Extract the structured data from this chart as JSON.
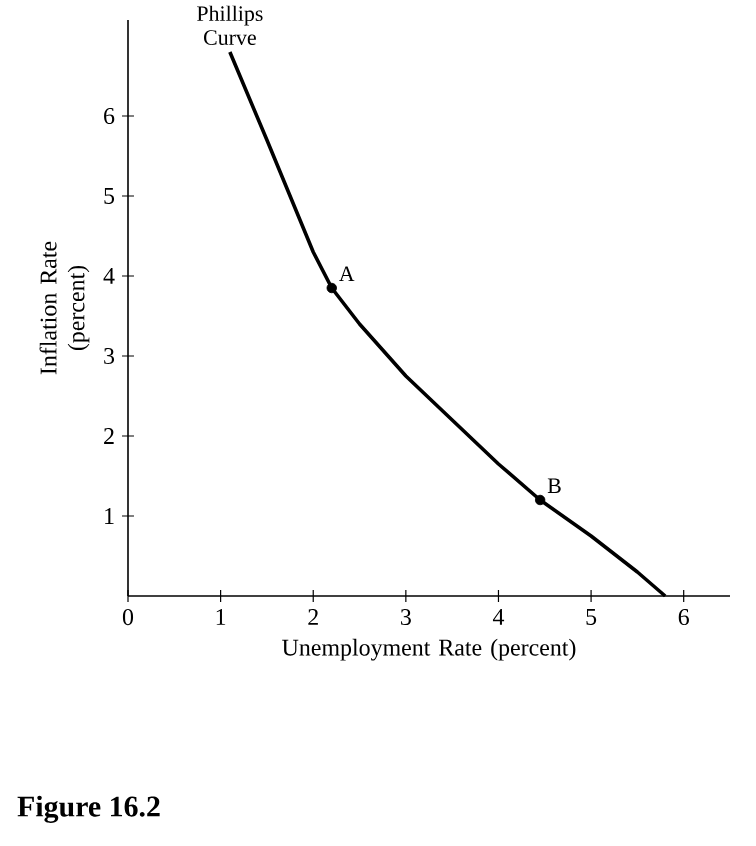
{
  "chart_data": {
    "type": "line",
    "xlabel": "Unemployment Rate (percent)",
    "ylabel": "Inflation Rate (percent)",
    "xlim": [
      0,
      6.5
    ],
    "ylim": [
      0,
      7.2
    ],
    "xticks": [
      0,
      1,
      2,
      3,
      4,
      5,
      6
    ],
    "yticks": [
      1,
      2,
      3,
      4,
      5,
      6
    ],
    "grid": false,
    "series": [
      {
        "color": "#000000",
        "x": [
          1.1,
          1.5,
          2.0,
          2.2,
          2.5,
          3.0,
          3.5,
          4.0,
          4.45,
          5.0,
          5.5,
          5.8
        ],
        "values": [
          6.8,
          5.7,
          4.3,
          3.85,
          3.4,
          2.75,
          2.2,
          1.65,
          1.2,
          0.75,
          0.3,
          0
        ]
      },
      {
        "type": "scatter",
        "color": "#000000",
        "x": [
          2.2,
          4.45
        ],
        "values": [
          3.85,
          1.2
        ]
      }
    ],
    "annotations": [
      {
        "text": "Phillips Curve",
        "x": 1.1,
        "y": 6.8
      },
      {
        "text": "A",
        "x": 2.2,
        "y": 3.85
      },
      {
        "text": "B",
        "x": 4.45,
        "y": 1.2
      },
      "**Figure 16.2**"
    ]
  }
}
